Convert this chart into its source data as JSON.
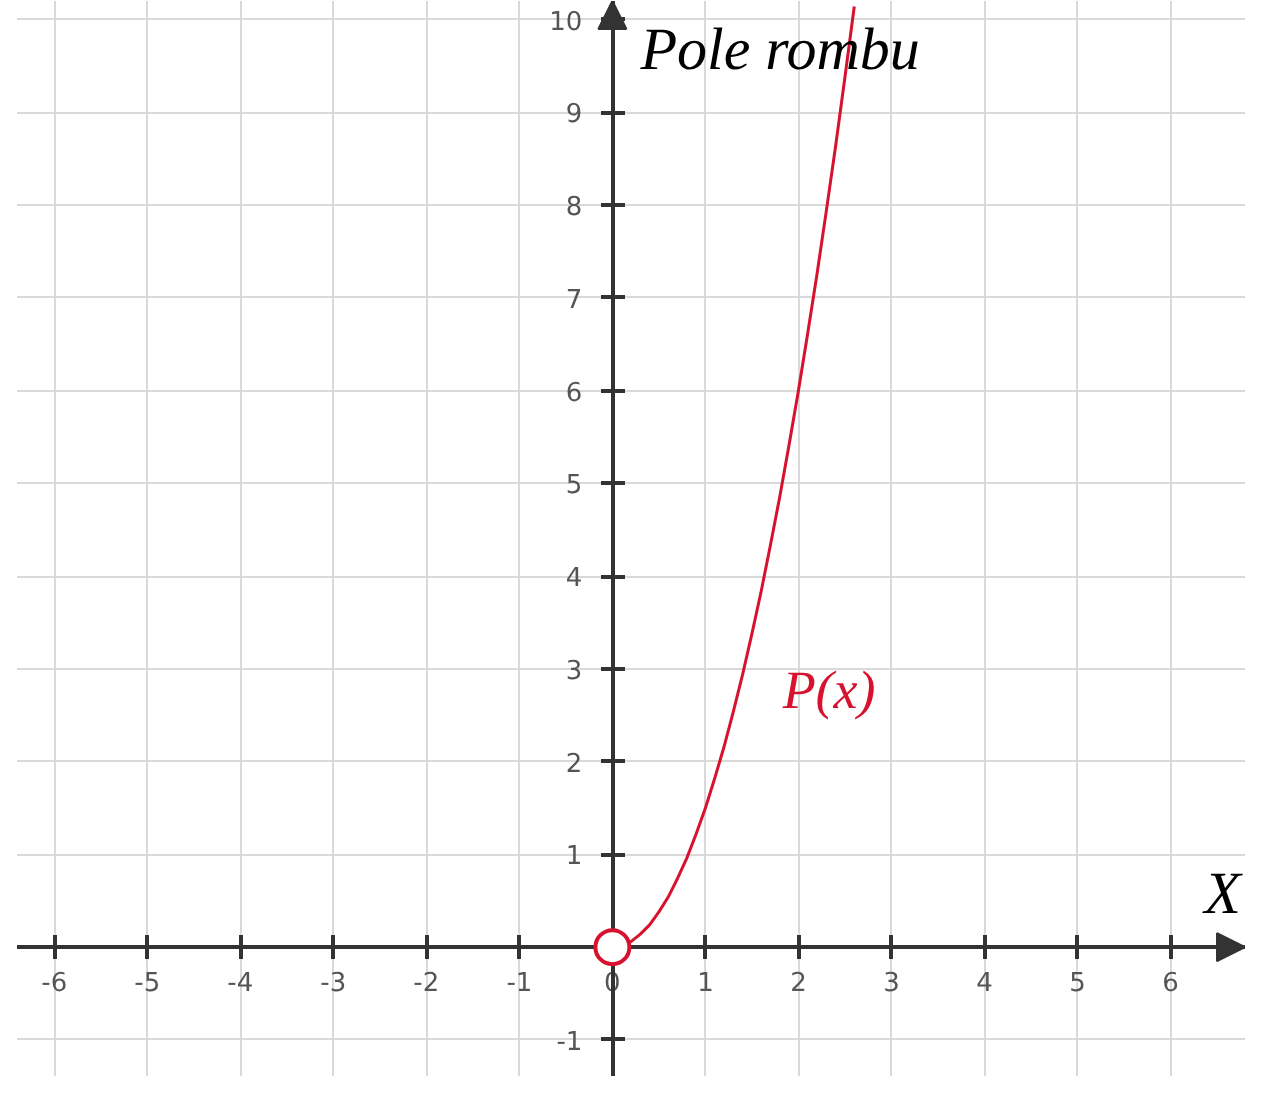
{
  "chart_data": {
    "type": "line",
    "xlabel": "X",
    "ylabel": "Pole rombu",
    "xlim": [
      -6.4,
      6.8
    ],
    "ylim": [
      -1.4,
      10.2
    ],
    "xticks": [
      -6,
      -5,
      -4,
      -3,
      -2,
      -1,
      0,
      1,
      2,
      3,
      4,
      5,
      6
    ],
    "yticks": [
      -1,
      1,
      2,
      3,
      4,
      5,
      6,
      7,
      8,
      9,
      10
    ],
    "grid": true,
    "series": [
      {
        "name": "P(x)",
        "color": "#d7122f",
        "x": [
          0,
          0.1,
          0.2,
          0.3,
          0.4,
          0.5,
          0.6,
          0.7,
          0.8,
          0.9,
          1,
          1.1,
          1.2,
          1.3,
          1.4,
          1.5,
          1.6,
          1.7,
          1.8,
          1.9,
          2,
          2.1,
          2.2,
          2.3,
          2.4,
          2.5,
          2.6
        ],
        "values": [
          0,
          0.02,
          0.06,
          0.14,
          0.24,
          0.38,
          0.54,
          0.74,
          0.96,
          1.22,
          1.5,
          1.82,
          2.16,
          2.54,
          2.94,
          3.38,
          3.84,
          4.34,
          4.86,
          5.42,
          6,
          6.62,
          7.26,
          7.94,
          8.64,
          9.38,
          10.14
        ]
      },
      {
        "type": "scatter",
        "marker": "circle",
        "color": "#d7122f",
        "x": [
          0
        ],
        "values": [
          0
        ]
      }
    ]
  }
}
